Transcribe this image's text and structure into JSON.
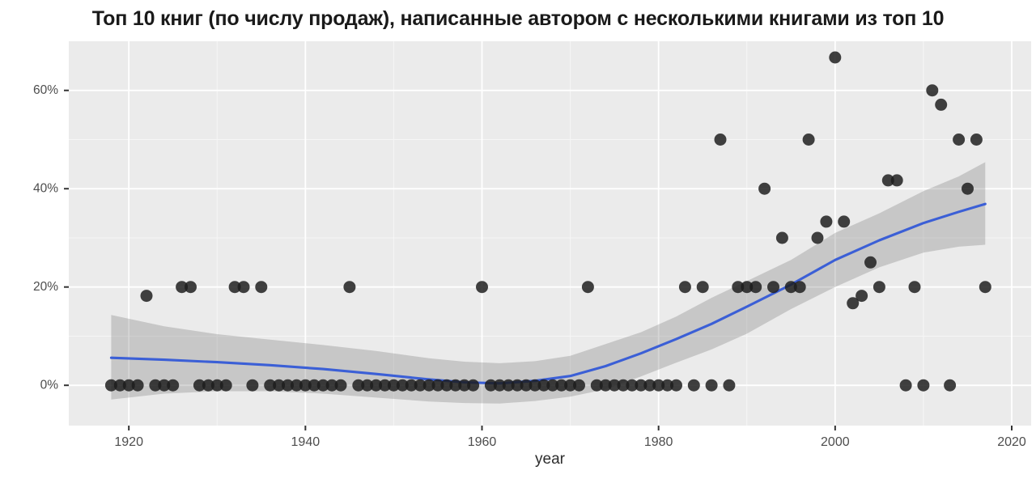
{
  "chart_data": {
    "type": "scatter",
    "title": "Топ 10 книг (по числу продаж), написанные автором с несколькими книгами из топ 10",
    "xlabel": "year",
    "ylabel": "",
    "grid": "on",
    "legend": "none",
    "xlim": [
      1913.2,
      2022.2
    ],
    "ylim": [
      -8.2,
      70.0
    ],
    "x_ticks": {
      "major": [
        1920,
        1940,
        1960,
        1980,
        2000,
        2020
      ],
      "labels": [
        "1920",
        "1940",
        "1960",
        "1980",
        "2000",
        "2020"
      ],
      "minor": [
        1930,
        1950,
        1970,
        1990,
        2010
      ]
    },
    "y_ticks": {
      "major": [
        0,
        20,
        40,
        60
      ],
      "labels": [
        "0%",
        "20%",
        "40%",
        "60%"
      ],
      "minor": [
        10,
        30,
        50
      ]
    },
    "points": [
      [
        1918,
        0
      ],
      [
        1919,
        0
      ],
      [
        1920,
        0
      ],
      [
        1921,
        0
      ],
      [
        1922,
        18.2
      ],
      [
        1923,
        0
      ],
      [
        1924,
        0
      ],
      [
        1925,
        0
      ],
      [
        1926,
        20
      ],
      [
        1927,
        20
      ],
      [
        1928,
        0
      ],
      [
        1929,
        0
      ],
      [
        1930,
        0
      ],
      [
        1931,
        0
      ],
      [
        1932,
        20
      ],
      [
        1933,
        20
      ],
      [
        1934,
        0
      ],
      [
        1935,
        20
      ],
      [
        1936,
        0
      ],
      [
        1937,
        0
      ],
      [
        1938,
        0
      ],
      [
        1939,
        0
      ],
      [
        1940,
        0
      ],
      [
        1941,
        0
      ],
      [
        1942,
        0
      ],
      [
        1943,
        0
      ],
      [
        1944,
        0
      ],
      [
        1945,
        20
      ],
      [
        1946,
        0
      ],
      [
        1947,
        0
      ],
      [
        1948,
        0
      ],
      [
        1949,
        0
      ],
      [
        1950,
        0
      ],
      [
        1951,
        0
      ],
      [
        1952,
        0
      ],
      [
        1953,
        0
      ],
      [
        1954,
        0
      ],
      [
        1955,
        0
      ],
      [
        1956,
        0
      ],
      [
        1957,
        0
      ],
      [
        1958,
        0
      ],
      [
        1959,
        0
      ],
      [
        1960,
        20
      ],
      [
        1961,
        0
      ],
      [
        1962,
        0
      ],
      [
        1963,
        0
      ],
      [
        1964,
        0
      ],
      [
        1965,
        0
      ],
      [
        1966,
        0
      ],
      [
        1967,
        0
      ],
      [
        1968,
        0
      ],
      [
        1969,
        0
      ],
      [
        1970,
        0
      ],
      [
        1971,
        0
      ],
      [
        1972,
        20
      ],
      [
        1973,
        0
      ],
      [
        1974,
        0
      ],
      [
        1975,
        0
      ],
      [
        1976,
        0
      ],
      [
        1977,
        0
      ],
      [
        1978,
        0
      ],
      [
        1979,
        0
      ],
      [
        1980,
        0
      ],
      [
        1981,
        0
      ],
      [
        1982,
        0
      ],
      [
        1983,
        20
      ],
      [
        1984,
        0
      ],
      [
        1985,
        20
      ],
      [
        1986,
        0
      ],
      [
        1987,
        50
      ],
      [
        1988,
        0
      ],
      [
        1989,
        20
      ],
      [
        1990,
        20
      ],
      [
        1991,
        20
      ],
      [
        1992,
        40
      ],
      [
        1993,
        20
      ],
      [
        1994,
        30
      ],
      [
        1995,
        20
      ],
      [
        1996,
        20
      ],
      [
        1997,
        50
      ],
      [
        1998,
        30
      ],
      [
        1999,
        33.3
      ],
      [
        2000,
        66.7
      ],
      [
        2001,
        33.3
      ],
      [
        2002,
        16.7
      ],
      [
        2003,
        18.2
      ],
      [
        2004,
        25
      ],
      [
        2005,
        20
      ],
      [
        2006,
        41.7
      ],
      [
        2007,
        41.7
      ],
      [
        2008,
        0
      ],
      [
        2009,
        20
      ],
      [
        2010,
        0
      ],
      [
        2011,
        60
      ],
      [
        2012,
        57.1
      ],
      [
        2013,
        0
      ],
      [
        2014,
        50
      ],
      [
        2015,
        40
      ],
      [
        2016,
        50
      ],
      [
        2017,
        20
      ]
    ],
    "smooth_line": [
      [
        1918,
        5.6
      ],
      [
        1924,
        5.2
      ],
      [
        1930,
        4.7
      ],
      [
        1936,
        4.1
      ],
      [
        1942,
        3.3
      ],
      [
        1948,
        2.3
      ],
      [
        1954,
        1.2
      ],
      [
        1958,
        0.6
      ],
      [
        1962,
        0.4
      ],
      [
        1966,
        0.9
      ],
      [
        1970,
        1.9
      ],
      [
        1974,
        3.9
      ],
      [
        1978,
        6.5
      ],
      [
        1982,
        9.4
      ],
      [
        1986,
        12.5
      ],
      [
        1990,
        16.0
      ],
      [
        1995,
        20.5
      ],
      [
        2000,
        25.5
      ],
      [
        2005,
        29.5
      ],
      [
        2010,
        33.0
      ],
      [
        2014,
        35.3
      ],
      [
        2017,
        36.9
      ]
    ],
    "confidence_band": [
      [
        1918,
        -2.9,
        14.3
      ],
      [
        1924,
        -1.7,
        12.0
      ],
      [
        1930,
        -1.2,
        10.4
      ],
      [
        1936,
        -1.2,
        9.3
      ],
      [
        1942,
        -1.7,
        8.2
      ],
      [
        1948,
        -2.5,
        7.0
      ],
      [
        1954,
        -3.3,
        5.5
      ],
      [
        1958,
        -3.6,
        4.8
      ],
      [
        1962,
        -3.7,
        4.5
      ],
      [
        1966,
        -3.2,
        4.9
      ],
      [
        1970,
        -2.3,
        6.0
      ],
      [
        1974,
        -0.8,
        8.4
      ],
      [
        1978,
        1.8,
        10.8
      ],
      [
        1982,
        4.6,
        14.0
      ],
      [
        1986,
        7.3,
        17.8
      ],
      [
        1990,
        10.5,
        21.2
      ],
      [
        1995,
        15.5,
        25.5
      ],
      [
        2000,
        20.0,
        31.0
      ],
      [
        2005,
        24.0,
        35.0
      ],
      [
        2010,
        27.0,
        39.5
      ],
      [
        2014,
        28.2,
        42.5
      ],
      [
        2017,
        28.6,
        45.4
      ]
    ],
    "colors": {
      "background": "#ffffff",
      "panel": "#ebebeb",
      "grid_major": "#ffffff",
      "grid_minor": "#f6f6f6",
      "band": "rgba(104,104,104,0.27)",
      "line": "#3b5fd6",
      "point": "#1d1d1d",
      "tick": "#333333",
      "axis_text": "#4d4d4d",
      "axis_title": "#2d2d2d",
      "title": "#1a1a1a"
    }
  }
}
